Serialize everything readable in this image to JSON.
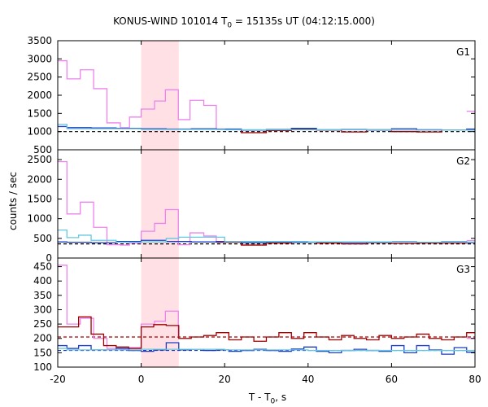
{
  "chart_data": {
    "type": "line",
    "title_parts": [
      "KONUS-WIND 101014 T",
      "0",
      " = 15135s UT (04:12:15.000)"
    ],
    "xlabel_parts": [
      "T - T",
      "0",
      ", s"
    ],
    "ylabel": "counts / sec",
    "xlim": [
      -20,
      80
    ],
    "xticks": [
      "-20",
      "0",
      "20",
      "40",
      "60",
      "80"
    ],
    "shaded_interval": [
      0,
      9
    ],
    "grid": false,
    "colors": {
      "pink": "#ee82ee",
      "red": "#a00000",
      "blue": "#1f3fbf",
      "cyan": "#66c8e0",
      "shade": "#ffe0e4"
    },
    "panels": [
      {
        "label": "G1",
        "ylim": [
          500,
          3500
        ],
        "yticks": [
          "500",
          "1000",
          "1500",
          "2000",
          "2500",
          "3000",
          "3500"
        ],
        "background": 1000,
        "series": [
          {
            "color": "pink",
            "x": [
              -20,
              -17.8,
              -14.6,
              -11.4,
              -8.2,
              -5,
              -2.8,
              0,
              3.2,
              5.8,
              8.9,
              11.7,
              15,
              18
            ],
            "y": [
              2950,
              2450,
              2700,
              2180,
              1240,
              1110,
              1400,
              1620,
              1840,
              2150,
              1330,
              1860,
              1720,
              1070
            ]
          },
          {
            "color": "red",
            "x": [
              18,
              24,
              30,
              36,
              42,
              48,
              54,
              60,
              66,
              72,
              78,
              80
            ],
            "y": [
              1060,
              970,
              1030,
              1070,
              1040,
              990,
              1050,
              1000,
              990,
              1040,
              1050,
              1050
            ]
          },
          {
            "color": "blue",
            "x": [
              -20,
              -17.8,
              -12,
              -6,
              0,
              6,
              12,
              18,
              24,
              30,
              36,
              42,
              48,
              54,
              60,
              66,
              72,
              78,
              80
            ],
            "y": [
              1140,
              1110,
              1100,
              1090,
              1080,
              1070,
              1080,
              1070,
              1040,
              1060,
              1090,
              1050,
              1060,
              1040,
              1080,
              1050,
              1040,
              1070,
              1070
            ]
          },
          {
            "color": "cyan",
            "x": [
              -20,
              -17.8,
              0,
              20,
              40,
              60,
              80
            ],
            "y": [
              1200,
              1080,
              1060,
              1050,
              1050,
              1040,
              1040
            ]
          },
          {
            "color": "pink",
            "x": [
              78,
              80
            ],
            "y": [
              1560,
              1560
            ]
          }
        ]
      },
      {
        "label": "G2",
        "ylim": [
          0,
          2750
        ],
        "yticks": [
          "0",
          "500",
          "1000",
          "1500",
          "2000",
          "2500"
        ],
        "background": 360,
        "series": [
          {
            "color": "pink",
            "x": [
              -20,
              -17.8,
              -14.6,
              -11.4,
              -8.2,
              -5,
              -2.8,
              0,
              3.2,
              5.8,
              8.9,
              11.7,
              15,
              18
            ],
            "y": [
              2450,
              1120,
              1420,
              780,
              340,
              330,
              380,
              680,
              880,
              1230,
              340,
              640,
              560,
              400
            ]
          },
          {
            "color": "red",
            "x": [
              18,
              24,
              30,
              36,
              42,
              48,
              54,
              60,
              66,
              72,
              78,
              80
            ],
            "y": [
              400,
              330,
              380,
              400,
              380,
              360,
              390,
              370,
              380,
              380,
              390,
              390
            ]
          },
          {
            "color": "blue",
            "x": [
              -20,
              -17.8,
              -12,
              -6,
              0,
              6,
              12,
              18,
              24,
              30,
              36,
              42,
              48,
              54,
              60,
              66,
              72,
              78,
              80
            ],
            "y": [
              410,
              400,
              390,
              420,
              450,
              420,
              410,
              420,
              390,
              410,
              400,
              410,
              390,
              400,
              410,
              400,
              410,
              390,
              390
            ]
          },
          {
            "color": "cyan",
            "x": [
              -20,
              -17.8,
              -15,
              -12,
              -6,
              0,
              6,
              9,
              20,
              40,
              60,
              80
            ],
            "y": [
              710,
              520,
              580,
              450,
              400,
              410,
              500,
              530,
              420,
              410,
              400,
              400
            ]
          },
          {
            "color": "pink",
            "x": [
              78,
              80
            ],
            "y": [
              440,
              440
            ]
          }
        ]
      },
      {
        "label": "G3",
        "ylim": [
          100,
          480
        ],
        "yticks": [
          "100",
          "150",
          "200",
          "250",
          "300",
          "350",
          "400",
          "450"
        ],
        "background_red": 205,
        "background_blue": 158,
        "series": [
          {
            "color": "pink",
            "x": [
              -20,
              -17.8,
              -14.6,
              -11.4,
              -8.2,
              -5,
              -2.8,
              0,
              3.2,
              5.8,
              8.9
            ],
            "y": [
              455,
              250,
              270,
              200,
              165,
              162,
              168,
              250,
              260,
              295,
              205
            ]
          },
          {
            "color": "red",
            "x": [
              -20,
              -17.8,
              -15,
              -12,
              -9,
              -6,
              -3,
              0,
              3,
              6,
              9,
              12,
              15,
              18,
              21,
              24,
              27,
              30,
              33,
              36,
              39,
              42,
              45,
              48,
              51,
              54,
              57,
              60,
              63,
              66,
              69,
              72,
              75,
              78,
              80
            ],
            "y": [
              240,
              240,
              275,
              215,
              175,
              170,
              165,
              240,
              248,
              245,
              200,
              205,
              210,
              220,
              195,
              205,
              190,
              205,
              220,
              200,
              220,
              205,
              195,
              210,
              200,
              195,
              210,
              200,
              205,
              215,
              200,
              195,
              205,
              220,
              220
            ]
          },
          {
            "color": "blue",
            "x": [
              -20,
              -17.8,
              -15,
              -12,
              -9,
              -6,
              -3,
              0,
              3,
              6,
              9,
              12,
              15,
              18,
              21,
              24,
              27,
              30,
              33,
              36,
              39,
              42,
              45,
              48,
              51,
              54,
              57,
              60,
              63,
              66,
              69,
              72,
              75,
              78,
              80
            ],
            "y": [
              175,
              165,
              175,
              160,
              160,
              165,
              158,
              155,
              160,
              185,
              160,
              162,
              158,
              160,
              155,
              158,
              162,
              158,
              155,
              163,
              170,
              155,
              150,
              158,
              162,
              158,
              155,
              175,
              150,
              175,
              160,
              145,
              168,
              152,
              152
            ]
          },
          {
            "color": "cyan",
            "x": [
              -20,
              -17.8,
              0,
              20,
              40,
              60,
              80
            ],
            "y": [
              165,
              160,
              162,
              160,
              158,
              158,
              160
            ]
          },
          {
            "color": "pink",
            "x": [
              78,
              80
            ],
            "y": [
              200,
              200
            ]
          }
        ]
      }
    ]
  }
}
